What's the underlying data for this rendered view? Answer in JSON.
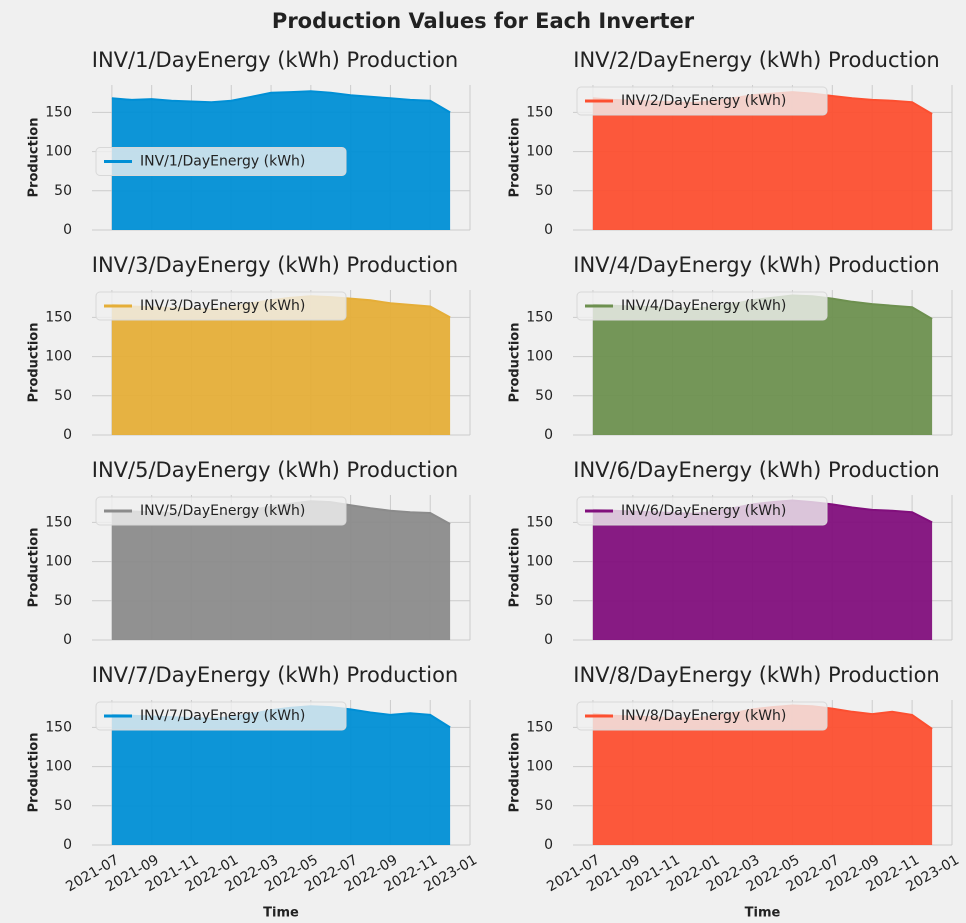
{
  "title": "Production Values for Each Inverter",
  "chart_data": [
    {
      "type": "area",
      "title": "INV/1/DayEnergy (kWh) Production",
      "ylabel": "Production",
      "legend": "center left",
      "x": [
        "2021-07",
        "2021-08",
        "2021-09",
        "2021-10",
        "2021-11",
        "2021-12",
        "2022-01",
        "2022-02",
        "2022-03",
        "2022-04",
        "2022-05",
        "2022-06",
        "2022-07",
        "2022-08",
        "2022-09",
        "2022-10",
        "2022-11",
        "2022-12"
      ],
      "series": [
        {
          "name": "INV/1/DayEnergy (kWh)",
          "color": "#008fd5",
          "values": [
            168,
            166,
            167,
            165,
            164,
            163,
            165,
            170,
            175,
            176,
            177,
            175,
            172,
            170,
            168,
            166,
            165,
            150
          ]
        }
      ],
      "xlim": [
        "2021-06",
        "2023-01"
      ],
      "ylim": [
        0,
        185
      ],
      "yticks": [
        0,
        50,
        100,
        150
      ],
      "grid": true
    },
    {
      "type": "area",
      "title": "INV/2/DayEnergy (kWh) Production",
      "ylabel": "Production",
      "legend": "upper left",
      "x": [
        "2021-07",
        "2021-08",
        "2021-09",
        "2021-10",
        "2021-11",
        "2021-12",
        "2022-01",
        "2022-02",
        "2022-03",
        "2022-04",
        "2022-05",
        "2022-06",
        "2022-07",
        "2022-08",
        "2022-09",
        "2022-10",
        "2022-11",
        "2022-12"
      ],
      "series": [
        {
          "name": "INV/2/DayEnergy (kWh)",
          "color": "#fc4f30",
          "values": [
            168,
            166,
            165,
            164,
            163,
            162,
            164,
            168,
            172,
            174,
            176,
            174,
            171,
            168,
            166,
            165,
            163,
            148
          ]
        }
      ],
      "xlim": [
        "2021-06",
        "2023-01"
      ],
      "ylim": [
        0,
        185
      ],
      "yticks": [
        0,
        50,
        100,
        150
      ],
      "grid": true
    },
    {
      "type": "area",
      "title": "INV/3/DayEnergy (kWh) Production",
      "ylabel": "Production",
      "legend": "upper left",
      "x": [
        "2021-07",
        "2021-08",
        "2021-09",
        "2021-10",
        "2021-11",
        "2021-12",
        "2022-01",
        "2022-02",
        "2022-03",
        "2022-04",
        "2022-05",
        "2022-06",
        "2022-07",
        "2022-08",
        "2022-09",
        "2022-10",
        "2022-11",
        "2022-12"
      ],
      "series": [
        {
          "name": "INV/3/DayEnergy (kWh)",
          "color": "#e5ae38",
          "values": [
            166,
            164,
            163,
            162,
            161,
            160,
            163,
            168,
            172,
            175,
            177,
            176,
            174,
            172,
            168,
            166,
            164,
            150
          ]
        }
      ],
      "xlim": [
        "2021-06",
        "2023-01"
      ],
      "ylim": [
        0,
        185
      ],
      "yticks": [
        0,
        50,
        100,
        150
      ],
      "grid": true
    },
    {
      "type": "area",
      "title": "INV/4/DayEnergy (kWh) Production",
      "ylabel": "Production",
      "legend": "upper left",
      "x": [
        "2021-07",
        "2021-08",
        "2021-09",
        "2021-10",
        "2021-11",
        "2021-12",
        "2022-01",
        "2022-02",
        "2022-03",
        "2022-04",
        "2022-05",
        "2022-06",
        "2022-07",
        "2022-08",
        "2022-09",
        "2022-10",
        "2022-11",
        "2022-12"
      ],
      "series": [
        {
          "name": "INV/4/DayEnergy (kWh)",
          "color": "#6d904f",
          "values": [
            166,
            165,
            164,
            163,
            162,
            161,
            163,
            167,
            172,
            175,
            178,
            177,
            174,
            170,
            167,
            165,
            163,
            148
          ]
        }
      ],
      "xlim": [
        "2021-06",
        "2023-01"
      ],
      "ylim": [
        0,
        185
      ],
      "yticks": [
        0,
        50,
        100,
        150
      ],
      "grid": true
    },
    {
      "type": "area",
      "title": "INV/5/DayEnergy (kWh) Production",
      "ylabel": "Production",
      "legend": "upper left",
      "x": [
        "2021-07",
        "2021-08",
        "2021-09",
        "2021-10",
        "2021-11",
        "2021-12",
        "2022-01",
        "2022-02",
        "2022-03",
        "2022-04",
        "2022-05",
        "2022-06",
        "2022-07",
        "2022-08",
        "2022-09",
        "2022-10",
        "2022-11",
        "2022-12"
      ],
      "series": [
        {
          "name": "INV/5/DayEnergy (kWh)",
          "color": "#8b8b8b",
          "values": [
            165,
            164,
            163,
            162,
            161,
            160,
            162,
            166,
            170,
            174,
            177,
            176,
            172,
            168,
            165,
            163,
            162,
            148
          ]
        }
      ],
      "xlim": [
        "2021-06",
        "2023-01"
      ],
      "ylim": [
        0,
        185
      ],
      "yticks": [
        0,
        50,
        100,
        150
      ],
      "grid": true
    },
    {
      "type": "area",
      "title": "INV/6/DayEnergy (kWh) Production",
      "ylabel": "Production",
      "legend": "upper left",
      "x": [
        "2021-07",
        "2021-08",
        "2021-09",
        "2021-10",
        "2021-11",
        "2021-12",
        "2022-01",
        "2022-02",
        "2022-03",
        "2022-04",
        "2022-05",
        "2022-06",
        "2022-07",
        "2022-08",
        "2022-09",
        "2022-10",
        "2022-11",
        "2022-12"
      ],
      "series": [
        {
          "name": "INV/6/DayEnergy (kWh)",
          "color": "#810f7c",
          "values": [
            166,
            165,
            164,
            163,
            162,
            161,
            163,
            168,
            173,
            176,
            178,
            176,
            173,
            169,
            166,
            165,
            163,
            150
          ]
        }
      ],
      "xlim": [
        "2021-06",
        "2023-01"
      ],
      "ylim": [
        0,
        185
      ],
      "yticks": [
        0,
        50,
        100,
        150
      ],
      "grid": true
    },
    {
      "type": "area",
      "title": "INV/7/DayEnergy (kWh) Production",
      "ylabel": "Production",
      "xlabel": "Time",
      "legend": "upper left",
      "x": [
        "2021-07",
        "2021-08",
        "2021-09",
        "2021-10",
        "2021-11",
        "2021-12",
        "2022-01",
        "2022-02",
        "2022-03",
        "2022-04",
        "2022-05",
        "2022-06",
        "2022-07",
        "2022-08",
        "2022-09",
        "2022-10",
        "2022-11",
        "2022-12"
      ],
      "series": [
        {
          "name": "INV/7/DayEnergy (kWh)",
          "color": "#008fd5",
          "values": [
            166,
            165,
            164,
            163,
            162,
            161,
            163,
            167,
            172,
            175,
            177,
            176,
            173,
            169,
            166,
            168,
            166,
            150
          ]
        }
      ],
      "xlim": [
        "2021-06",
        "2023-01"
      ],
      "xticks": [
        "2021-07",
        "2021-09",
        "2021-11",
        "2022-01",
        "2022-03",
        "2022-05",
        "2022-07",
        "2022-09",
        "2022-11",
        "2023-01"
      ],
      "ylim": [
        0,
        185
      ],
      "yticks": [
        0,
        50,
        100,
        150
      ],
      "grid": true
    },
    {
      "type": "area",
      "title": "INV/8/DayEnergy (kWh) Production",
      "ylabel": "Production",
      "xlabel": "Time",
      "legend": "upper left",
      "x": [
        "2021-07",
        "2021-08",
        "2021-09",
        "2021-10",
        "2021-11",
        "2021-12",
        "2022-01",
        "2022-02",
        "2022-03",
        "2022-04",
        "2022-05",
        "2022-06",
        "2022-07",
        "2022-08",
        "2022-09",
        "2022-10",
        "2022-11",
        "2022-12"
      ],
      "series": [
        {
          "name": "INV/8/DayEnergy (kWh)",
          "color": "#fc4f30",
          "values": [
            167,
            165,
            164,
            163,
            162,
            161,
            164,
            168,
            173,
            176,
            178,
            177,
            174,
            170,
            167,
            170,
            166,
            148
          ]
        }
      ],
      "xlim": [
        "2021-06",
        "2023-01"
      ],
      "xticks": [
        "2021-07",
        "2021-09",
        "2021-11",
        "2022-01",
        "2022-03",
        "2022-05",
        "2022-07",
        "2022-09",
        "2022-11",
        "2023-01"
      ],
      "ylim": [
        0,
        185
      ],
      "yticks": [
        0,
        50,
        100,
        150
      ],
      "grid": true
    }
  ]
}
